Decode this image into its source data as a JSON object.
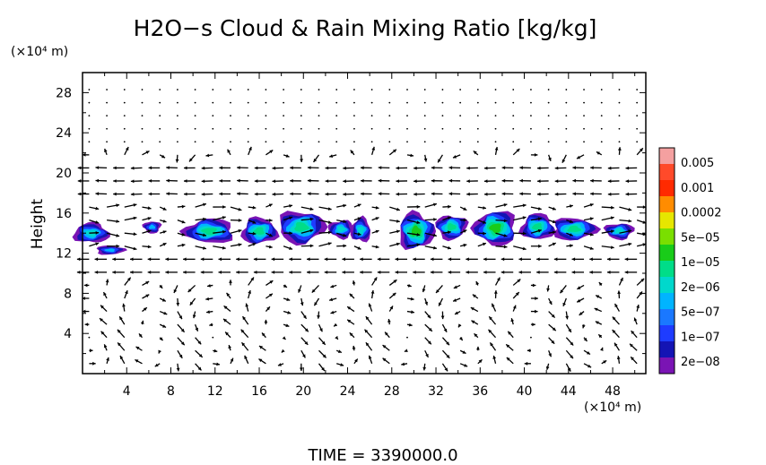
{
  "chart_data": {
    "type": "heatmap",
    "title": "H2O−s Cloud & Rain Mixing Ratio [kg/kg]",
    "ylabel": "Height",
    "y_unit": "(×10⁴ m)",
    "x_unit": "(×10⁴ m)",
    "xlim": [
      0,
      51
    ],
    "ylim": [
      0,
      30
    ],
    "x_ticks": [
      "4",
      "8",
      "12",
      "16",
      "20",
      "24",
      "28",
      "32",
      "36",
      "40",
      "44",
      "48"
    ],
    "y_ticks": [
      "4",
      "8",
      "12",
      "16",
      "20",
      "24",
      "28"
    ],
    "x_tick_values": [
      4,
      8,
      12,
      16,
      20,
      24,
      28,
      32,
      36,
      40,
      44,
      48
    ],
    "y_tick_values": [
      4,
      8,
      12,
      16,
      20,
      24,
      28
    ],
    "colorbar": {
      "labels": [
        "0.005",
        "0.001",
        "0.0002",
        "5e−05",
        "1e−05",
        "2e−06",
        "5e−07",
        "1e−07",
        "2e−08"
      ],
      "colors": [
        "#f4a0a0",
        "#ff4a2a",
        "#ff2a00",
        "#ff8c00",
        "#e6e600",
        "#7adf00",
        "#19cc19",
        "#00dd88",
        "#00d8cc",
        "#00b4ff",
        "#1a78ff",
        "#1e3cff",
        "#1414b4",
        "#7a14b4"
      ]
    },
    "cloud_bands": [
      {
        "x": 0.8,
        "y": 14.0,
        "w": 3.2,
        "h": 2.0,
        "level": 0.45
      },
      {
        "x": 2.5,
        "y": 12.3,
        "w": 2.6,
        "h": 0.9,
        "level": 0.2
      },
      {
        "x": 6.3,
        "y": 14.6,
        "w": 1.6,
        "h": 1.2,
        "level": 0.1
      },
      {
        "x": 11.5,
        "y": 14.2,
        "w": 4.5,
        "h": 2.4,
        "level": 0.5
      },
      {
        "x": 16.0,
        "y": 14.2,
        "w": 3.2,
        "h": 2.6,
        "level": 0.55
      },
      {
        "x": 19.8,
        "y": 14.6,
        "w": 4.2,
        "h": 3.2,
        "level": 0.65
      },
      {
        "x": 23.4,
        "y": 14.4,
        "w": 2.2,
        "h": 1.8,
        "level": 0.35
      },
      {
        "x": 25.2,
        "y": 14.3,
        "w": 1.8,
        "h": 2.4,
        "level": 0.45
      },
      {
        "x": 30.2,
        "y": 14.2,
        "w": 3.2,
        "h": 3.6,
        "level": 0.7
      },
      {
        "x": 33.4,
        "y": 14.6,
        "w": 2.8,
        "h": 2.4,
        "level": 0.5
      },
      {
        "x": 37.4,
        "y": 14.5,
        "w": 3.8,
        "h": 3.4,
        "level": 0.72
      },
      {
        "x": 41.2,
        "y": 14.6,
        "w": 3.0,
        "h": 2.6,
        "level": 0.55
      },
      {
        "x": 44.5,
        "y": 14.4,
        "w": 4.0,
        "h": 2.2,
        "level": 0.6
      },
      {
        "x": 48.6,
        "y": 14.2,
        "w": 2.6,
        "h": 1.6,
        "level": 0.45
      }
    ]
  },
  "footer": {
    "time_label": "TIME = 3390000.0"
  }
}
